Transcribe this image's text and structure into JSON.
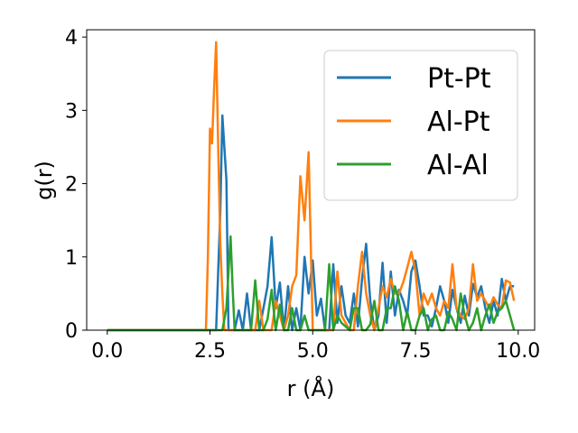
{
  "chart_data": {
    "type": "line",
    "xlabel": "r (Å)",
    "ylabel": "g(r)",
    "xlim": [
      -0.5,
      10.4
    ],
    "ylim": [
      0,
      4.1
    ],
    "xticks": [
      0.0,
      2.5,
      5.0,
      7.5,
      10.0
    ],
    "xtick_labels": [
      "0.0",
      "2.5",
      "5.0",
      "7.5",
      "10.0"
    ],
    "yticks": [
      0,
      1,
      2,
      3,
      4
    ],
    "ytick_labels": [
      "0",
      "1",
      "2",
      "3",
      "4"
    ],
    "grid": false,
    "legend": "top-right",
    "series": [
      {
        "name": "Pt-Pt",
        "color": "#1f77b4",
        "x": [
          0.0,
          2.5,
          2.55,
          2.6,
          2.65,
          2.7,
          2.75,
          2.8,
          2.85,
          2.9,
          2.95,
          3.0,
          3.05,
          3.1,
          3.2,
          3.3,
          3.4,
          3.5,
          3.6,
          3.7,
          3.8,
          3.9,
          4.0,
          4.1,
          4.2,
          4.3,
          4.4,
          4.5,
          4.6,
          4.7,
          4.8,
          4.9,
          5.0,
          5.1,
          5.2,
          5.3,
          5.4,
          5.5,
          5.6,
          5.7,
          5.8,
          5.9,
          6.0,
          6.1,
          6.2,
          6.3,
          6.4,
          6.5,
          6.6,
          6.7,
          6.8,
          6.9,
          7.0,
          7.1,
          7.2,
          7.3,
          7.4,
          7.5,
          7.6,
          7.7,
          7.8,
          7.9,
          8.0,
          8.1,
          8.2,
          8.3,
          8.4,
          8.5,
          8.6,
          8.7,
          8.8,
          8.9,
          9.0,
          9.1,
          9.2,
          9.3,
          9.4,
          9.5,
          9.6,
          9.7,
          9.8,
          9.9
        ],
        "values": [
          0,
          0,
          0,
          0,
          0,
          0.8,
          1.6,
          2.93,
          2.5,
          2.05,
          0,
          0,
          0,
          0,
          0.27,
          0,
          0.5,
          0,
          0,
          0,
          0.3,
          0.6,
          1.27,
          0.3,
          0.65,
          0,
          0.6,
          0,
          0.3,
          0,
          1.0,
          0.5,
          0.95,
          0.2,
          0.43,
          0,
          0,
          0.9,
          0.1,
          0.6,
          0.2,
          0.1,
          0.5,
          0.05,
          0.7,
          1.18,
          0.4,
          0,
          0.2,
          0.92,
          0.1,
          0.8,
          0.2,
          0.55,
          0.4,
          0.2,
          0.8,
          0.95,
          0.6,
          0.2,
          0.2,
          0.05,
          0.3,
          0.6,
          0.4,
          0.1,
          0.55,
          0.3,
          0.1,
          0.47,
          0.2,
          0.63,
          0.45,
          0.6,
          0.3,
          0.1,
          0.4,
          0.2,
          0.7,
          0.4,
          0.6,
          0.6
        ]
      },
      {
        "name": "Al-Pt",
        "color": "#ff7f0e",
        "x": [
          0.0,
          2.4,
          2.45,
          2.5,
          2.55,
          2.6,
          2.65,
          2.7,
          2.75,
          2.8,
          2.85,
          2.9,
          3.0,
          3.1,
          3.2,
          3.3,
          3.4,
          3.5,
          3.6,
          3.7,
          3.8,
          3.9,
          4.0,
          4.1,
          4.2,
          4.3,
          4.4,
          4.5,
          4.6,
          4.7,
          4.8,
          4.9,
          5.0,
          5.1,
          5.2,
          5.3,
          5.4,
          5.5,
          5.6,
          5.7,
          5.8,
          5.9,
          6.0,
          6.1,
          6.2,
          6.3,
          6.4,
          6.5,
          6.6,
          6.7,
          6.8,
          6.9,
          7.0,
          7.1,
          7.2,
          7.3,
          7.4,
          7.5,
          7.6,
          7.7,
          7.8,
          7.9,
          8.0,
          8.1,
          8.2,
          8.3,
          8.4,
          8.5,
          8.6,
          8.7,
          8.8,
          8.9,
          9.0,
          9.1,
          9.2,
          9.3,
          9.4,
          9.5,
          9.6,
          9.7,
          9.8,
          9.9
        ],
        "values": [
          0,
          0,
          1.0,
          2.75,
          2.55,
          3.3,
          3.93,
          2.5,
          1.2,
          0.5,
          0,
          0,
          0,
          0,
          0,
          0,
          0,
          0,
          0,
          0.4,
          0,
          0,
          0,
          0.4,
          0.2,
          0,
          0.2,
          0.6,
          0.75,
          2.1,
          1.5,
          2.43,
          0,
          0,
          0,
          0,
          0,
          0,
          0.8,
          0.2,
          0.1,
          0,
          0,
          0.6,
          1.07,
          0.5,
          0.2,
          0,
          0.3,
          0.6,
          0.45,
          0.7,
          0.5,
          0.5,
          0.65,
          0.85,
          1.07,
          0.8,
          0.2,
          0.5,
          0.35,
          0.5,
          0.3,
          0.2,
          0.4,
          0.3,
          0.9,
          0.3,
          0.2,
          0.15,
          0.3,
          0.9,
          0.4,
          0.5,
          0.4,
          0.3,
          0.45,
          0.35,
          0.3,
          0.68,
          0.65,
          0.4
        ]
      },
      {
        "name": "Al-Al",
        "color": "#2ca02c",
        "x": [
          0.0,
          2.7,
          2.8,
          2.9,
          3.0,
          3.05,
          3.1,
          3.2,
          3.3,
          3.4,
          3.5,
          3.6,
          3.7,
          3.8,
          3.9,
          4.0,
          4.1,
          4.2,
          4.3,
          4.4,
          4.5,
          4.6,
          4.7,
          4.8,
          4.9,
          5.0,
          5.1,
          5.2,
          5.3,
          5.4,
          5.5,
          5.6,
          5.7,
          5.8,
          5.9,
          6.0,
          6.1,
          6.2,
          6.3,
          6.4,
          6.5,
          6.6,
          6.7,
          6.8,
          6.9,
          7.0,
          7.1,
          7.2,
          7.3,
          7.4,
          7.5,
          7.6,
          7.7,
          7.8,
          7.9,
          8.0,
          8.1,
          8.2,
          8.3,
          8.4,
          8.5,
          8.6,
          8.7,
          8.8,
          8.9,
          9.0,
          9.1,
          9.2,
          9.3,
          9.4,
          9.5,
          9.6,
          9.7,
          9.8,
          9.9
        ],
        "values": [
          0,
          0,
          0,
          0.3,
          1.28,
          0.6,
          0,
          0,
          0,
          0,
          0,
          0.68,
          0,
          0,
          0.15,
          0.55,
          0,
          0.35,
          0,
          0,
          0.3,
          0,
          0,
          0.2,
          0,
          0,
          0,
          0,
          0,
          0.9,
          0,
          0.2,
          0.1,
          0.05,
          0,
          0.3,
          0.3,
          0,
          0,
          0.08,
          0.4,
          0,
          0,
          0.3,
          0.3,
          0.6,
          0.4,
          0,
          0.25,
          0,
          0,
          0.2,
          0.3,
          0,
          0.15,
          0.2,
          0,
          0,
          0.25,
          0.15,
          0,
          0.5,
          0.2,
          0,
          0.1,
          0.3,
          0,
          0.2,
          0.35,
          0.1,
          0.25,
          0.3,
          0.4,
          0.2,
          0
        ]
      }
    ]
  }
}
